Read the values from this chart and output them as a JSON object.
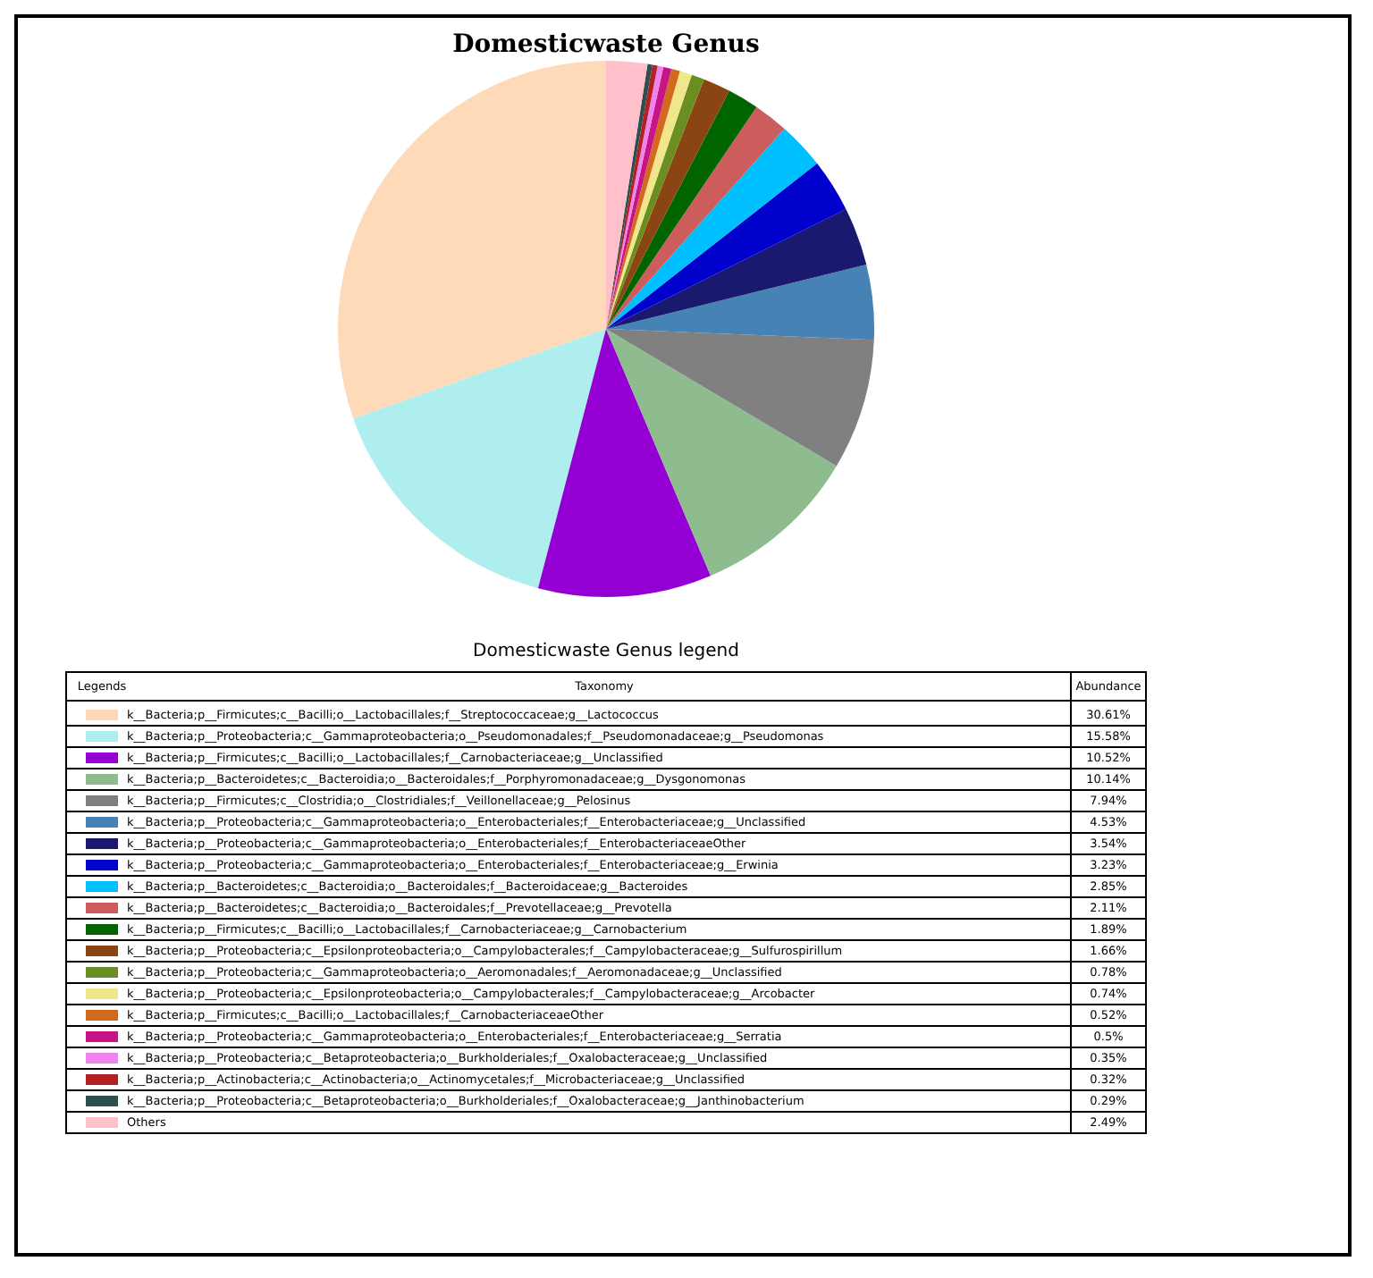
{
  "chart_data": {
    "type": "pie",
    "title": "Domesticwaste Genus",
    "legend_title": "Domesticwaste Genus legend",
    "legend": "bottom",
    "annotations": [
      "Legends",
      "Taxonomy",
      "Abundance"
    ],
    "categories": [
      "k__Bacteria;p__Firmicutes;c__Bacilli;o__Lactobacillales;f__Streptococcaceae;g__Lactococcus",
      "k__Bacteria;p__Proteobacteria;c__Gammaproteobacteria;o__Pseudomonadales;f__Pseudomonadaceae;g__Pseudomonas",
      "k__Bacteria;p__Firmicutes;c__Bacilli;o__Lactobacillales;f__Carnobacteriaceae;g__Unclassified",
      "k__Bacteria;p__Bacteroidetes;c__Bacteroidia;o__Bacteroidales;f__Porphyromonadaceae;g__Dysgonomonas",
      "k__Bacteria;p__Firmicutes;c__Clostridia;o__Clostridiales;f__Veillonellaceae;g__Pelosinus",
      "k__Bacteria;p__Proteobacteria;c__Gammaproteobacteria;o__Enterobacteriales;f__Enterobacteriaceae;g__Unclassified",
      "k__Bacteria;p__Proteobacteria;c__Gammaproteobacteria;o__Enterobacteriales;f__EnterobacteriaceaeOther",
      "k__Bacteria;p__Proteobacteria;c__Gammaproteobacteria;o__Enterobacteriales;f__Enterobacteriaceae;g__Erwinia",
      "k__Bacteria;p__Bacteroidetes;c__Bacteroidia;o__Bacteroidales;f__Bacteroidaceae;g__Bacteroides",
      "k__Bacteria;p__Bacteroidetes;c__Bacteroidia;o__Bacteroidales;f__Prevotellaceae;g__Prevotella",
      "k__Bacteria;p__Firmicutes;c__Bacilli;o__Lactobacillales;f__Carnobacteriaceae;g__Carnobacterium",
      "k__Bacteria;p__Proteobacteria;c__Epsilonproteobacteria;o__Campylobacterales;f__Campylobacteraceae;g__Sulfurospirillum",
      "k__Bacteria;p__Proteobacteria;c__Gammaproteobacteria;o__Aeromonadales;f__Aeromonadaceae;g__Unclassified",
      "k__Bacteria;p__Proteobacteria;c__Epsilonproteobacteria;o__Campylobacterales;f__Campylobacteraceae;g__Arcobacter",
      "k__Bacteria;p__Firmicutes;c__Bacilli;o__Lactobacillales;f__CarnobacteriaceaeOther",
      "k__Bacteria;p__Proteobacteria;c__Gammaproteobacteria;o__Enterobacteriales;f__Enterobacteriaceae;g__Serratia",
      "k__Bacteria;p__Proteobacteria;c__Betaproteobacteria;o__Burkholderiales;f__Oxalobacteraceae;g__Unclassified",
      "k__Bacteria;p__Actinobacteria;c__Actinobacteria;o__Actinomycetales;f__Microbacteriaceae;g__Unclassified",
      "k__Bacteria;p__Proteobacteria;c__Betaproteobacteria;o__Burkholderiales;f__Oxalobacteraceae;g__Janthinobacterium",
      "Others"
    ],
    "values": [
      30.61,
      15.58,
      10.52,
      10.14,
      7.94,
      4.53,
      3.54,
      3.23,
      2.85,
      2.11,
      1.89,
      1.66,
      0.78,
      0.74,
      0.52,
      0.5,
      0.35,
      0.32,
      0.29,
      2.49
    ],
    "value_labels": [
      "30.61%",
      "15.58%",
      "10.52%",
      "10.14%",
      "7.94%",
      "4.53%",
      "3.54%",
      "3.23%",
      "2.85%",
      "2.11%",
      "1.89%",
      "1.66%",
      "0.78%",
      "0.74%",
      "0.52%",
      "0.5%",
      "0.35%",
      "0.32%",
      "0.29%",
      "2.49%"
    ],
    "colors": [
      "#ffdab9",
      "#afeeee",
      "#9400d3",
      "#8fbc8f",
      "#808080",
      "#4682b4",
      "#191970",
      "#0000cd",
      "#00bfff",
      "#cd5c5c",
      "#006400",
      "#8b4513",
      "#6b8e23",
      "#f0e68c",
      "#d2691e",
      "#c71585",
      "#ee82ee",
      "#b22222",
      "#2f4f4f",
      "#ffc0cb"
    ]
  }
}
